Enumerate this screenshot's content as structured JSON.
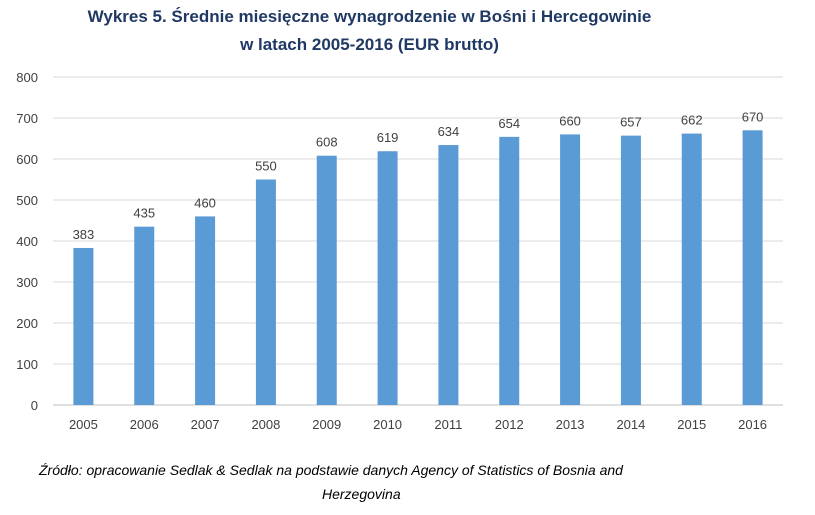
{
  "title": {
    "line1": "Wykres 5. Średnie miesięczne wynagrodzenie w Bośni i Hercegowinie",
    "line2": "w latach 2005-2016 (EUR brutto)"
  },
  "source": {
    "line1": "Źródło: opracowanie Sedlak & Sedlak na podstawie danych Agency of Statistics of Bosnia and",
    "line2": "Herzegovina"
  },
  "colors": {
    "bar": "#5b9bd5",
    "grid": "#d9d9d9",
    "title": "#1f3864",
    "text": "#404040"
  },
  "chart_data": {
    "type": "bar",
    "title": "Wykres 5. Średnie miesięczne wynagrodzenie w Bośni i Hercegowinie w latach 2005-2016 (EUR brutto)",
    "categories": [
      "2005",
      "2006",
      "2007",
      "2008",
      "2009",
      "2010",
      "2011",
      "2012",
      "2013",
      "2014",
      "2015",
      "2016"
    ],
    "values": [
      383,
      435,
      460,
      550,
      608,
      619,
      634,
      654,
      660,
      657,
      662,
      670
    ],
    "ylim": [
      0,
      800
    ],
    "yticks": [
      0,
      100,
      200,
      300,
      400,
      500,
      600,
      700,
      800
    ],
    "grid": true,
    "legend": "none"
  }
}
